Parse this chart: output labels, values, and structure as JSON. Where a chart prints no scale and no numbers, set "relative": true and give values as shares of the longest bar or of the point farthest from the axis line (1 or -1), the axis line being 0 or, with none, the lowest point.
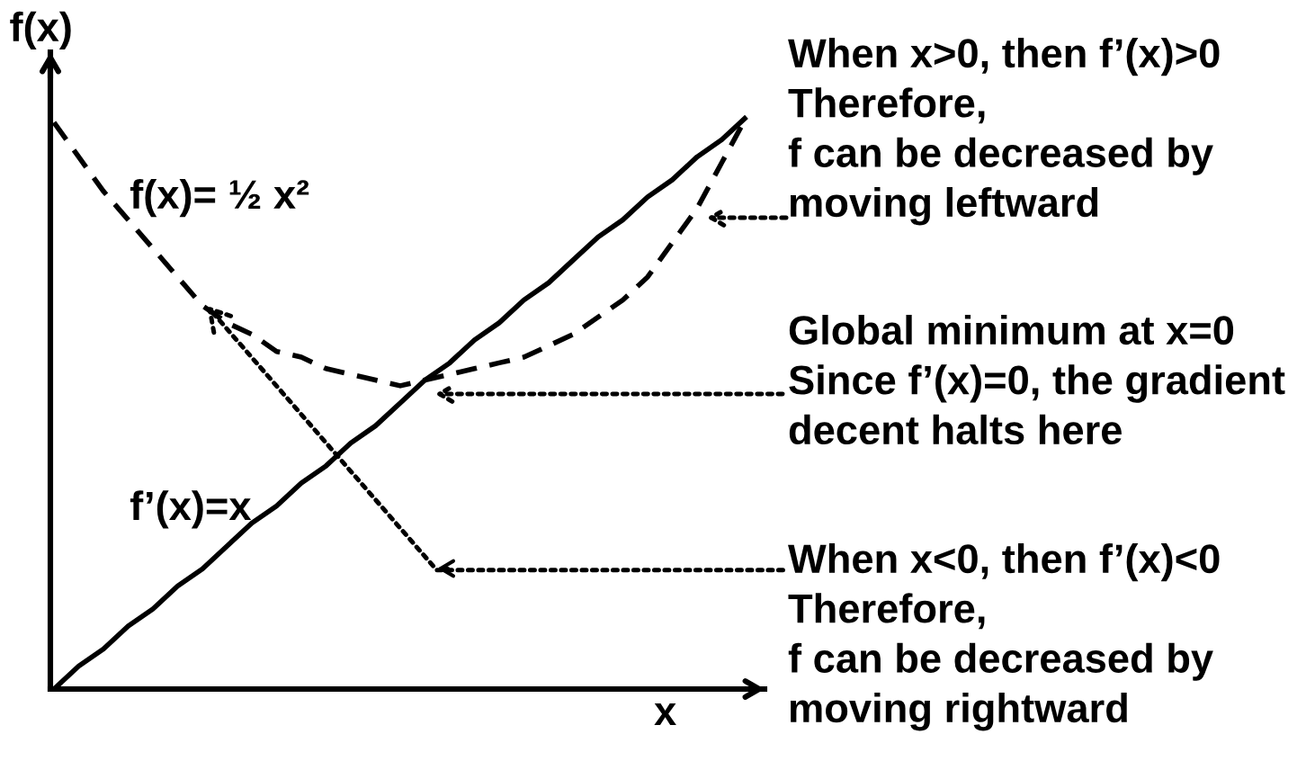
{
  "chart_data": {
    "type": "line",
    "relative": true,
    "xlabel": "x",
    "ylabel": "f(x)",
    "categories": [
      null,
      null,
      null,
      null,
      null,
      null,
      null,
      null,
      null,
      null,
      null,
      null,
      null,
      null,
      null,
      null,
      null,
      null,
      null,
      null,
      null,
      null,
      null,
      null,
      null,
      null,
      null,
      null,
      null
    ],
    "series": [
      {
        "name": "f(x)= ½ x²",
        "color": "#000000",
        "line_style": "dashed",
        "values": [
          0.99,
          0.93,
          0.87,
          0.82,
          0.77,
          0.72,
          0.67,
          0.64,
          0.62,
          0.59,
          0.58,
          0.56,
          0.55,
          0.54,
          0.53,
          0.54,
          0.55,
          0.56,
          0.57,
          0.58,
          0.6,
          0.62,
          0.65,
          0.68,
          0.72,
          0.78,
          0.84,
          0.92,
          1.0
        ]
      },
      {
        "name": "f’(x)=x",
        "color": "#000000",
        "line_style": "solid",
        "values": [
          0,
          0.04,
          0.07,
          0.11,
          0.14,
          0.18,
          0.21,
          0.25,
          0.29,
          0.32,
          0.36,
          0.39,
          0.43,
          0.46,
          0.5,
          0.54,
          0.57,
          0.61,
          0.64,
          0.68,
          0.71,
          0.75,
          0.79,
          0.82,
          0.86,
          0.89,
          0.93,
          0.96,
          1.0
        ]
      }
    ],
    "annotations": [
      "When x>0, then f’(x)>0\nTherefore,\nf can be decreased by\nmoving leftward",
      "Global minimum at x=0\nSince f’(x)=0, the gradient\ndecent halts here",
      "When x<0, then f’(x)<0\nTherefore,\nf can be decreased by\nmoving rightward"
    ]
  }
}
